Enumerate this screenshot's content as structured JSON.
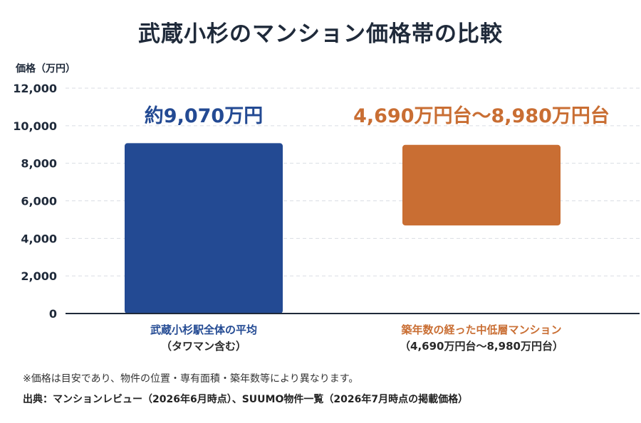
{
  "chart_data": {
    "type": "bar",
    "title": "武蔵小杉のマンション価格帯の比較",
    "ylabel": "価格（万円）",
    "ylim": [
      0,
      12000
    ],
    "yticks": [
      0,
      2000,
      4000,
      6000,
      8000,
      10000,
      12000
    ],
    "ytick_labels": [
      "0",
      "2,000",
      "4,000",
      "6,000",
      "8,000",
      "10,000",
      "12,000"
    ],
    "grid": true,
    "bars": [
      {
        "category": "武蔵小杉駅全体の平均",
        "sublabel": "（タワマン含む）",
        "low": 0,
        "high": 9070,
        "value_label": "約9,070万円",
        "color": "#234a93"
      },
      {
        "category": "築年数の経った中低層マンション",
        "sublabel": "（4,690万円台〜8,980万円台）",
        "low": 4690,
        "high": 8980,
        "value_label": "4,690万円台〜8,980万円台",
        "color": "#c96e33"
      }
    ]
  },
  "footer": {
    "note": "※価格は目安であり、物件の位置・専有面積・築年数等により異なります。",
    "source": "出典：マンションレビュー（2026年6月時点）、SUUMO物件一覧（2026年7月時点の掲載価格）"
  }
}
